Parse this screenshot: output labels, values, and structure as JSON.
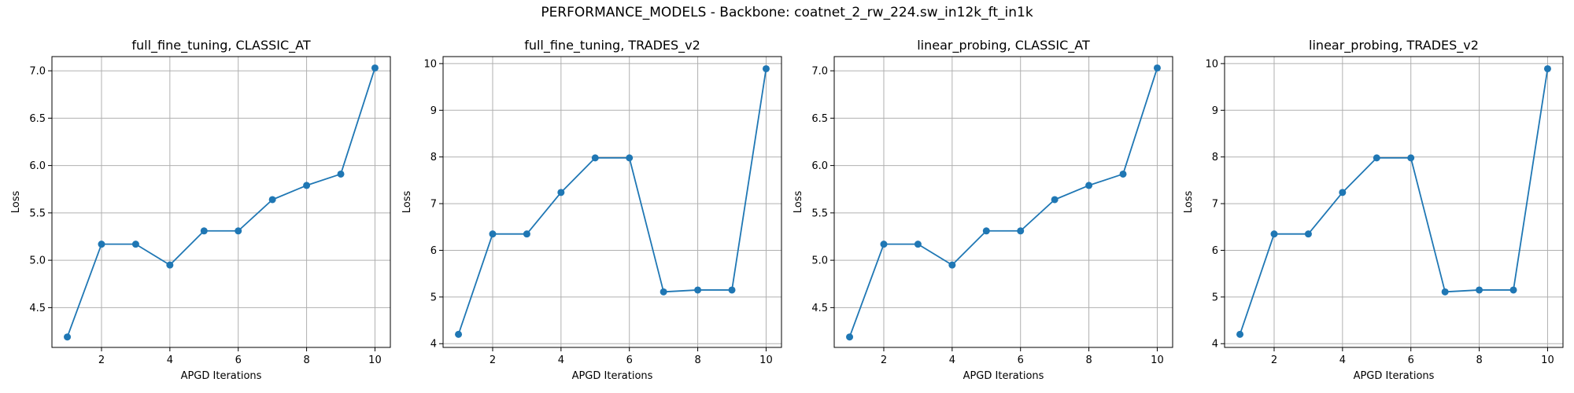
{
  "suptitle": "PERFORMANCE_MODELS - Backbone: coatnet_2_rw_224.sw_in12k_ft_in1k",
  "colors": {
    "line": "#1f77b4",
    "grid": "#b0b0b0",
    "axis": "#000000"
  },
  "chart_data": [
    {
      "type": "line",
      "title": "full_fine_tuning, CLASSIC_AT",
      "xlabel": "APGD Iterations",
      "ylabel": "Loss",
      "grid": true,
      "xlim": [
        0.55,
        10.45
      ],
      "ylim": [
        4.08,
        7.15
      ],
      "xticks": [
        2,
        4,
        6,
        8,
        10
      ],
      "yticks": [
        4.5,
        5.0,
        5.5,
        6.0,
        6.5,
        7.0
      ],
      "ytick_labels": [
        "4.5",
        "5.0",
        "5.5",
        "6.0",
        "6.5",
        "7.0"
      ],
      "x": [
        1,
        2,
        3,
        4,
        5,
        6,
        7,
        8,
        9,
        10
      ],
      "series": [
        {
          "values": [
            4.19,
            5.17,
            5.17,
            4.95,
            5.31,
            5.31,
            5.64,
            5.79,
            5.91,
            7.03
          ]
        }
      ]
    },
    {
      "type": "line",
      "title": "full_fine_tuning, TRADES_v2",
      "xlabel": "APGD Iterations",
      "ylabel": "Loss",
      "grid": true,
      "xlim": [
        0.55,
        10.45
      ],
      "ylim": [
        3.92,
        10.15
      ],
      "xticks": [
        2,
        4,
        6,
        8,
        10
      ],
      "yticks": [
        4,
        5,
        6,
        7,
        8,
        9,
        10
      ],
      "ytick_labels": [
        "4",
        "5",
        "6",
        "7",
        "8",
        "9",
        "10"
      ],
      "x": [
        1,
        2,
        3,
        4,
        5,
        6,
        7,
        8,
        9,
        10
      ],
      "series": [
        {
          "values": [
            4.2,
            6.35,
            6.35,
            7.24,
            7.98,
            7.98,
            5.11,
            5.15,
            5.15,
            9.89
          ]
        }
      ]
    },
    {
      "type": "line",
      "title": "linear_probing, CLASSIC_AT",
      "xlabel": "APGD Iterations",
      "ylabel": "Loss",
      "grid": true,
      "xlim": [
        0.55,
        10.45
      ],
      "ylim": [
        4.08,
        7.15
      ],
      "xticks": [
        2,
        4,
        6,
        8,
        10
      ],
      "yticks": [
        4.5,
        5.0,
        5.5,
        6.0,
        6.5,
        7.0
      ],
      "ytick_labels": [
        "4.5",
        "5.0",
        "5.5",
        "6.0",
        "6.5",
        "7.0"
      ],
      "x": [
        1,
        2,
        3,
        4,
        5,
        6,
        7,
        8,
        9,
        10
      ],
      "series": [
        {
          "values": [
            4.19,
            5.17,
            5.17,
            4.95,
            5.31,
            5.31,
            5.64,
            5.79,
            5.91,
            7.03
          ]
        }
      ]
    },
    {
      "type": "line",
      "title": "linear_probing, TRADES_v2",
      "xlabel": "APGD Iterations",
      "ylabel": "Loss",
      "grid": true,
      "xlim": [
        0.55,
        10.45
      ],
      "ylim": [
        3.92,
        10.15
      ],
      "xticks": [
        2,
        4,
        6,
        8,
        10
      ],
      "yticks": [
        4,
        5,
        6,
        7,
        8,
        9,
        10
      ],
      "ytick_labels": [
        "4",
        "5",
        "6",
        "7",
        "8",
        "9",
        "10"
      ],
      "x": [
        1,
        2,
        3,
        4,
        5,
        6,
        7,
        8,
        9,
        10
      ],
      "series": [
        {
          "values": [
            4.2,
            6.35,
            6.35,
            7.24,
            7.98,
            7.98,
            5.11,
            5.15,
            5.15,
            9.89
          ]
        }
      ]
    }
  ]
}
